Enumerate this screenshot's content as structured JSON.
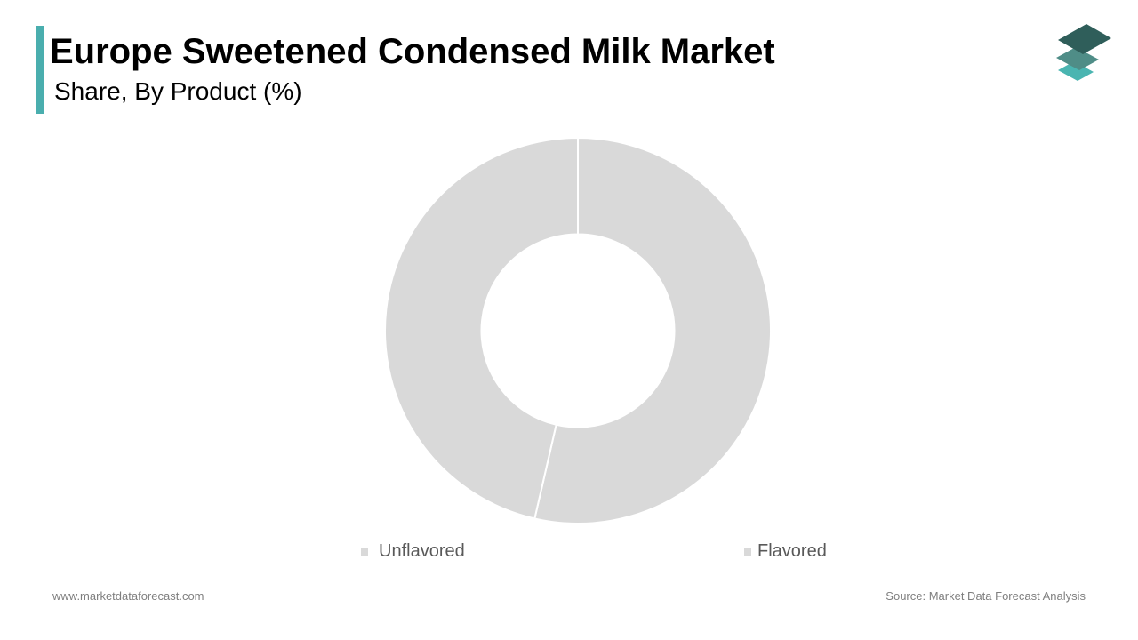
{
  "header": {
    "title": "Europe Sweetened Condensed Milk Market",
    "subtitle": "Share, By Product (%)",
    "accent_color": "#4aaeae",
    "logo_icon": "layers-icon",
    "logo_colors": [
      "#2f5e5a",
      "#4f8d87",
      "#4ab5b1"
    ]
  },
  "chart_data": {
    "type": "pie",
    "variant": "donut",
    "title": "Europe Sweetened Condensed Milk Market",
    "subtitle": "Share, By Product (%)",
    "categories": [
      "Unflavored",
      "Flavored"
    ],
    "values": [
      53.6,
      46.4
    ],
    "colors": [
      "#d9d9d9",
      "#d9d9d9"
    ],
    "data_labels_shown": false,
    "legend_position": "bottom",
    "start_angle": 0,
    "direction": "clockwise",
    "hole_ratio": 0.5
  },
  "legend": {
    "items": [
      {
        "label": "Unflavored",
        "color": "#d9d9d9"
      },
      {
        "label": "Flavored",
        "color": "#d9d9d9"
      }
    ]
  },
  "footer": {
    "website": "www.marketdataforecast.com",
    "source": "Source: Market Data Forecast Analysis"
  }
}
